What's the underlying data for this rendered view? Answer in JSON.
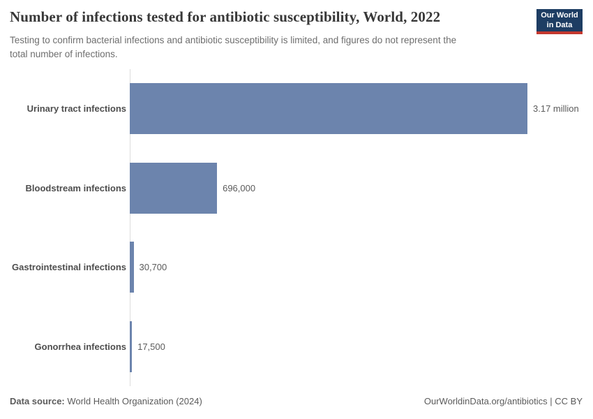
{
  "chart_data": {
    "type": "bar",
    "orientation": "horizontal",
    "title": "Number of infections tested for antibiotic susceptibility, World, 2022",
    "subtitle": "Testing to confirm bacterial infections and antibiotic susceptibility is limited, and figures do not represent the\ntotal number of infections.",
    "categories": [
      "Urinary tract infections",
      "Bloodstream infections",
      "Gastrointestinal infections",
      "Gonorrhea infections"
    ],
    "values": [
      3170000,
      696000,
      30700,
      17500
    ],
    "value_labels": [
      "3.17 million",
      "696,000",
      "30,700",
      "17,500"
    ],
    "xlim": [
      0,
      3170000
    ],
    "bar_color": "#6c84ad",
    "grid": false,
    "legend": false,
    "value_label_position": "right"
  },
  "header": {
    "logo_line1": "Our World",
    "logo_line2": "in Data"
  },
  "footer": {
    "source_label": "Data source:",
    "source_value": "World Health Organization (2024)",
    "right_text": "OurWorldinData.org/antibiotics | CC BY"
  },
  "colors": {
    "bar": "#6c84ad",
    "logo_background": "#1d3d63",
    "logo_accent": "#c4382f",
    "title_text": "#383838",
    "subtitle_text": "#6e6e6e",
    "axis_line": "#dcdcdc"
  }
}
